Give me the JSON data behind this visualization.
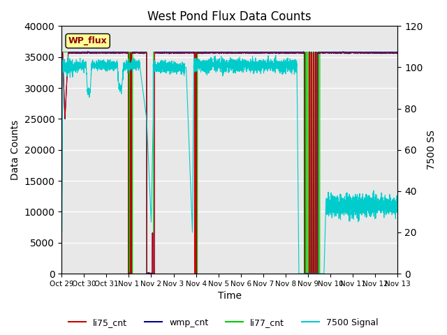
{
  "title": "West Pond Flux Data Counts",
  "xlabel": "Time",
  "ylabel_left": "Data Counts",
  "ylabel_right": "7500 SS",
  "ylim_left": [
    0,
    40000
  ],
  "ylim_right": [
    0,
    120
  ],
  "x_tick_labels": [
    "Oct 29",
    "Oct 30",
    "Oct 31",
    "Nov 1",
    "Nov 2",
    "Nov 3",
    "Nov 4",
    "Nov 5",
    "Nov 6",
    "Nov 7",
    "Nov 8",
    "Nov 9",
    "Nov 10",
    "Nov 11",
    "Nov 12",
    "Nov 13"
  ],
  "background_color": "#dcdcdc",
  "plot_bg_color": "#e8e8e8",
  "wp_flux_box_color": "#ffff99",
  "wp_flux_text_color": "#8b0000",
  "series_colors": {
    "li75_cnt": "#cc0000",
    "wmp_cnt": "#00008b",
    "li77_cnt": "#00cc00",
    "signal": "#00cccc"
  },
  "li75_base": 35700,
  "li77_base": 35800,
  "signal_high": 101,
  "signal_noise": 0.8
}
